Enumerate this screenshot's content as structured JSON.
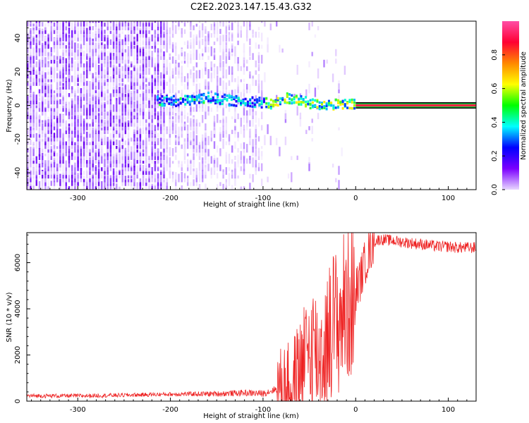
{
  "title": "C2E2.2023.147.15.43.G32",
  "chart_data": [
    {
      "type": "heatmap",
      "xlabel": "Height of straight line (km)",
      "ylabel": "Frequency (Hz)",
      "xlim": [
        -355,
        130
      ],
      "ylim": [
        -50,
        50
      ],
      "xticks": [
        -300,
        -200,
        -100,
        0,
        100
      ],
      "yticks": [
        -40,
        -20,
        0,
        20,
        40
      ],
      "colorbar": {
        "label": "Normalized spectral amplitude",
        "range": [
          0,
          1
        ],
        "ticks": [
          0.0,
          0.2,
          0.4,
          0.6,
          0.8
        ],
        "colors": [
          "#e8d8ff",
          "#7b00ff",
          "#0000ff",
          "#00ffff",
          "#00ff00",
          "#ffff00",
          "#ff0000",
          "#ff0066"
        ]
      },
      "ridge": {
        "x": [
          -205,
          -190,
          -175,
          -160,
          -145,
          -130,
          -115,
          -100,
          -90,
          -75,
          -60,
          -45,
          -30,
          -20,
          -10,
          0,
          130
        ],
        "y": [
          2,
          2,
          3,
          4,
          3,
          2,
          2,
          1,
          0,
          4,
          2,
          0,
          0,
          0,
          0,
          0,
          0
        ]
      },
      "grid": false
    },
    {
      "type": "line",
      "xlabel": "Height of straight line (km)",
      "ylabel": "SNR (10 * v/v)",
      "xlim": [
        -355,
        130
      ],
      "ylim": [
        0,
        7300
      ],
      "xticks": [
        -300,
        -200,
        -100,
        0,
        100
      ],
      "yticks": [
        0,
        2000,
        4000,
        6000
      ],
      "color": "#ee2222",
      "x": [
        -355,
        -300,
        -250,
        -200,
        -150,
        -120,
        -100,
        -80,
        -70,
        -60,
        -50,
        -45,
        -40,
        -35,
        -30,
        -25,
        -20,
        -15,
        -10,
        -5,
        0,
        5,
        10,
        15,
        20,
        25,
        30,
        40,
        50,
        60,
        70,
        80,
        90,
        100,
        110,
        120,
        130
      ],
      "y": [
        230,
        230,
        260,
        300,
        320,
        360,
        330,
        600,
        550,
        1300,
        2200,
        2600,
        1800,
        2200,
        2700,
        3600,
        3300,
        3900,
        4100,
        4600,
        4800,
        5300,
        6000,
        6500,
        6900,
        7000,
        7000,
        6950,
        6900,
        6850,
        6800,
        6750,
        6700,
        6700,
        6650,
        6650,
        6650
      ],
      "grid": false
    }
  ]
}
